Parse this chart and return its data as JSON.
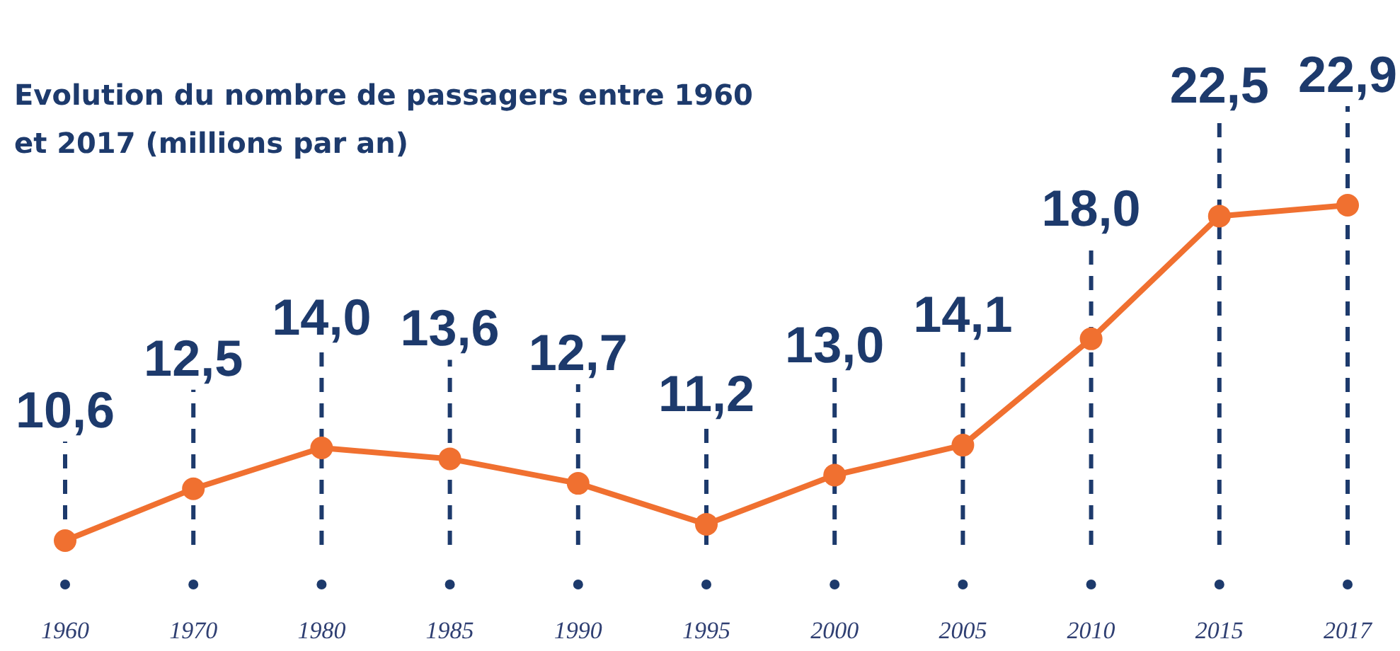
{
  "chart_data": {
    "type": "line",
    "title": "Evolution du nombre de passagers entre 1960 et 2017 (millions par an)",
    "categories": [
      "1960",
      "1970",
      "1980",
      "1985",
      "1990",
      "1995",
      "2000",
      "2005",
      "2010",
      "2015",
      "2017"
    ],
    "series": [
      {
        "color": "#f07030",
        "values": [
          10.6,
          12.5,
          14.0,
          13.6,
          12.7,
          11.2,
          13.0,
          14.1,
          18.0,
          22.5,
          22.9
        ],
        "value_labels": [
          "10,6",
          "12,5",
          "14,0",
          "13,6",
          "12,7",
          "11,2",
          "13,0",
          "14,1",
          "18,0",
          "22,5",
          "22,9"
        ]
      }
    ],
    "grid": "x",
    "marker": "circle",
    "line_style": "solid"
  }
}
